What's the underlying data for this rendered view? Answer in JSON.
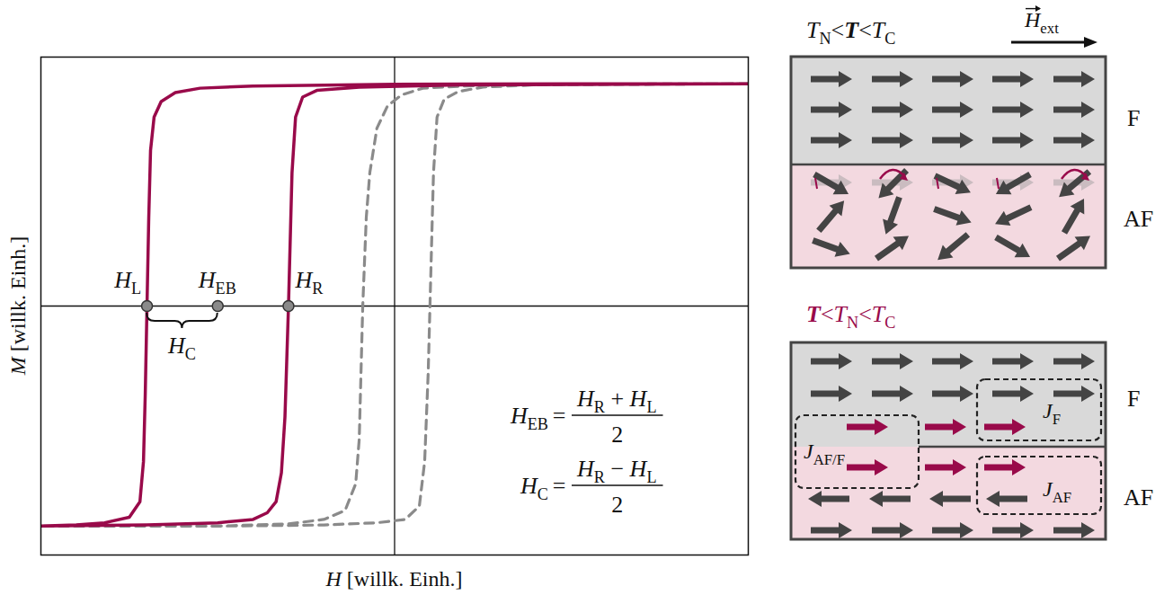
{
  "chart_data": {
    "type": "line",
    "xlabel": "H [willk. Einh.]",
    "ylabel": "M [willk. Einh.]",
    "xlim": [
      -10,
      10
    ],
    "ylim": [
      -1.12,
      1.12
    ],
    "tick_labels": false,
    "series": [
      {
        "color": "#8a8a8a",
        "line_style": "dashed",
        "x": [
          10,
          5,
          2,
          0.8,
          0.2,
          -0.2,
          -0.5,
          -0.7,
          -0.8,
          -0.85,
          -0.9,
          -0.95,
          -1,
          -1.1,
          -1.4,
          -2,
          -3,
          -5,
          -10,
          -10,
          -5,
          -2,
          -0.5,
          0.3,
          0.7,
          0.85,
          0.95,
          1,
          1.05,
          1.1,
          1.2,
          1.4,
          1.8,
          2.5,
          4,
          10
        ],
        "values": [
          1,
          0.998,
          0.99,
          0.98,
          0.95,
          0.9,
          0.8,
          0.6,
          0.4,
          0.2,
          0,
          -0.3,
          -0.6,
          -0.8,
          -0.92,
          -0.96,
          -0.98,
          -0.99,
          -0.99,
          -0.99,
          -0.99,
          -0.985,
          -0.975,
          -0.96,
          -0.9,
          -0.7,
          -0.3,
          0,
          0.3,
          0.6,
          0.85,
          0.93,
          0.965,
          0.985,
          0.995,
          1
        ]
      },
      {
        "color": "#990a4a",
        "line_style": "solid",
        "x": [
          10,
          5,
          0,
          -4,
          -5.5,
          -6.2,
          -6.6,
          -6.8,
          -6.9,
          -6.95,
          -7,
          -7.05,
          -7.1,
          -7.2,
          -7.5,
          -8.2,
          -9,
          -10,
          -10,
          -7,
          -5,
          -4,
          -3.6,
          -3.35,
          -3.2,
          -3.1,
          -3.05,
          -3,
          -2.95,
          -2.9,
          -2.8,
          -2.6,
          -2.2,
          -1,
          2,
          10
        ],
        "values": [
          1,
          1,
          0.998,
          0.99,
          0.98,
          0.96,
          0.92,
          0.85,
          0.7,
          0.4,
          0,
          -0.4,
          -0.7,
          -0.88,
          -0.95,
          -0.975,
          -0.985,
          -0.99,
          -0.99,
          -0.985,
          -0.975,
          -0.96,
          -0.93,
          -0.88,
          -0.75,
          -0.5,
          -0.25,
          0,
          0.3,
          0.6,
          0.85,
          0.94,
          0.97,
          0.985,
          0.995,
          1
        ]
      }
    ],
    "annotations": {
      "lines": [
        {
          "axis": "x",
          "value": 0
        },
        {
          "axis": "y",
          "value": 0
        }
      ],
      "points": [
        {
          "x": -7,
          "y": 0,
          "color": "#8a8a8a",
          "label": [
            {
              "t": "H",
              "sub": "L"
            }
          ]
        },
        {
          "x": -5,
          "y": 0,
          "color": "#8a8a8a",
          "label": [
            {
              "t": "H",
              "sub": "EB"
            }
          ]
        },
        {
          "x": -3,
          "y": 0,
          "color": "#8a8a8a",
          "label": [
            {
              "t": "H",
              "sub": "R"
            }
          ]
        }
      ],
      "brace": {
        "from": -7,
        "to": -5,
        "y": 0,
        "label": [
          {
            "t": "H",
            "sub": "C"
          }
        ]
      },
      "formulas": [
        {
          "lhs": [
            {
              "t": "H",
              "sub": "EB"
            }
          ],
          "relation": "=",
          "numerator": [
            {
              "t": "H",
              "sub": "R"
            },
            {
              "t": "+"
            },
            {
              "t": "H",
              "sub": "L"
            }
          ],
          "denominator": "2"
        },
        {
          "lhs": [
            {
              "t": "H",
              "sub": "C"
            }
          ],
          "relation": "=",
          "numerator": [
            {
              "t": "H",
              "sub": "R"
            },
            {
              "t": "−"
            },
            {
              "t": "H",
              "sub": "L"
            }
          ],
          "denominator": "2"
        }
      ]
    }
  },
  "diagrams": [
    {
      "title": [
        {
          "t": "T",
          "sub": "N"
        },
        {
          "t": "<"
        },
        {
          "t": "T",
          "emphasis": true
        },
        {
          "t": "<"
        },
        {
          "t": "T",
          "sub": "C"
        }
      ],
      "title_color": "#111111",
      "field": [
        {
          "t": "H",
          "sub": "ext",
          "vector": true
        }
      ],
      "layers": [
        "F",
        "AF"
      ]
    },
    {
      "title": [
        {
          "t": "T",
          "emphasis": true
        },
        {
          "t": "<"
        },
        {
          "t": "T",
          "sub": "N"
        },
        {
          "t": "<"
        },
        {
          "t": "T",
          "sub": "C"
        }
      ],
      "title_color": "#990a4a",
      "layers": [
        "F",
        "AF"
      ],
      "couplings": [
        [
          {
            "t": "J",
            "sub": "F"
          }
        ],
        [
          {
            "t": "J",
            "sub": "AF/F"
          }
        ],
        [
          {
            "t": "J",
            "sub": "AF"
          }
        ]
      ]
    }
  ]
}
